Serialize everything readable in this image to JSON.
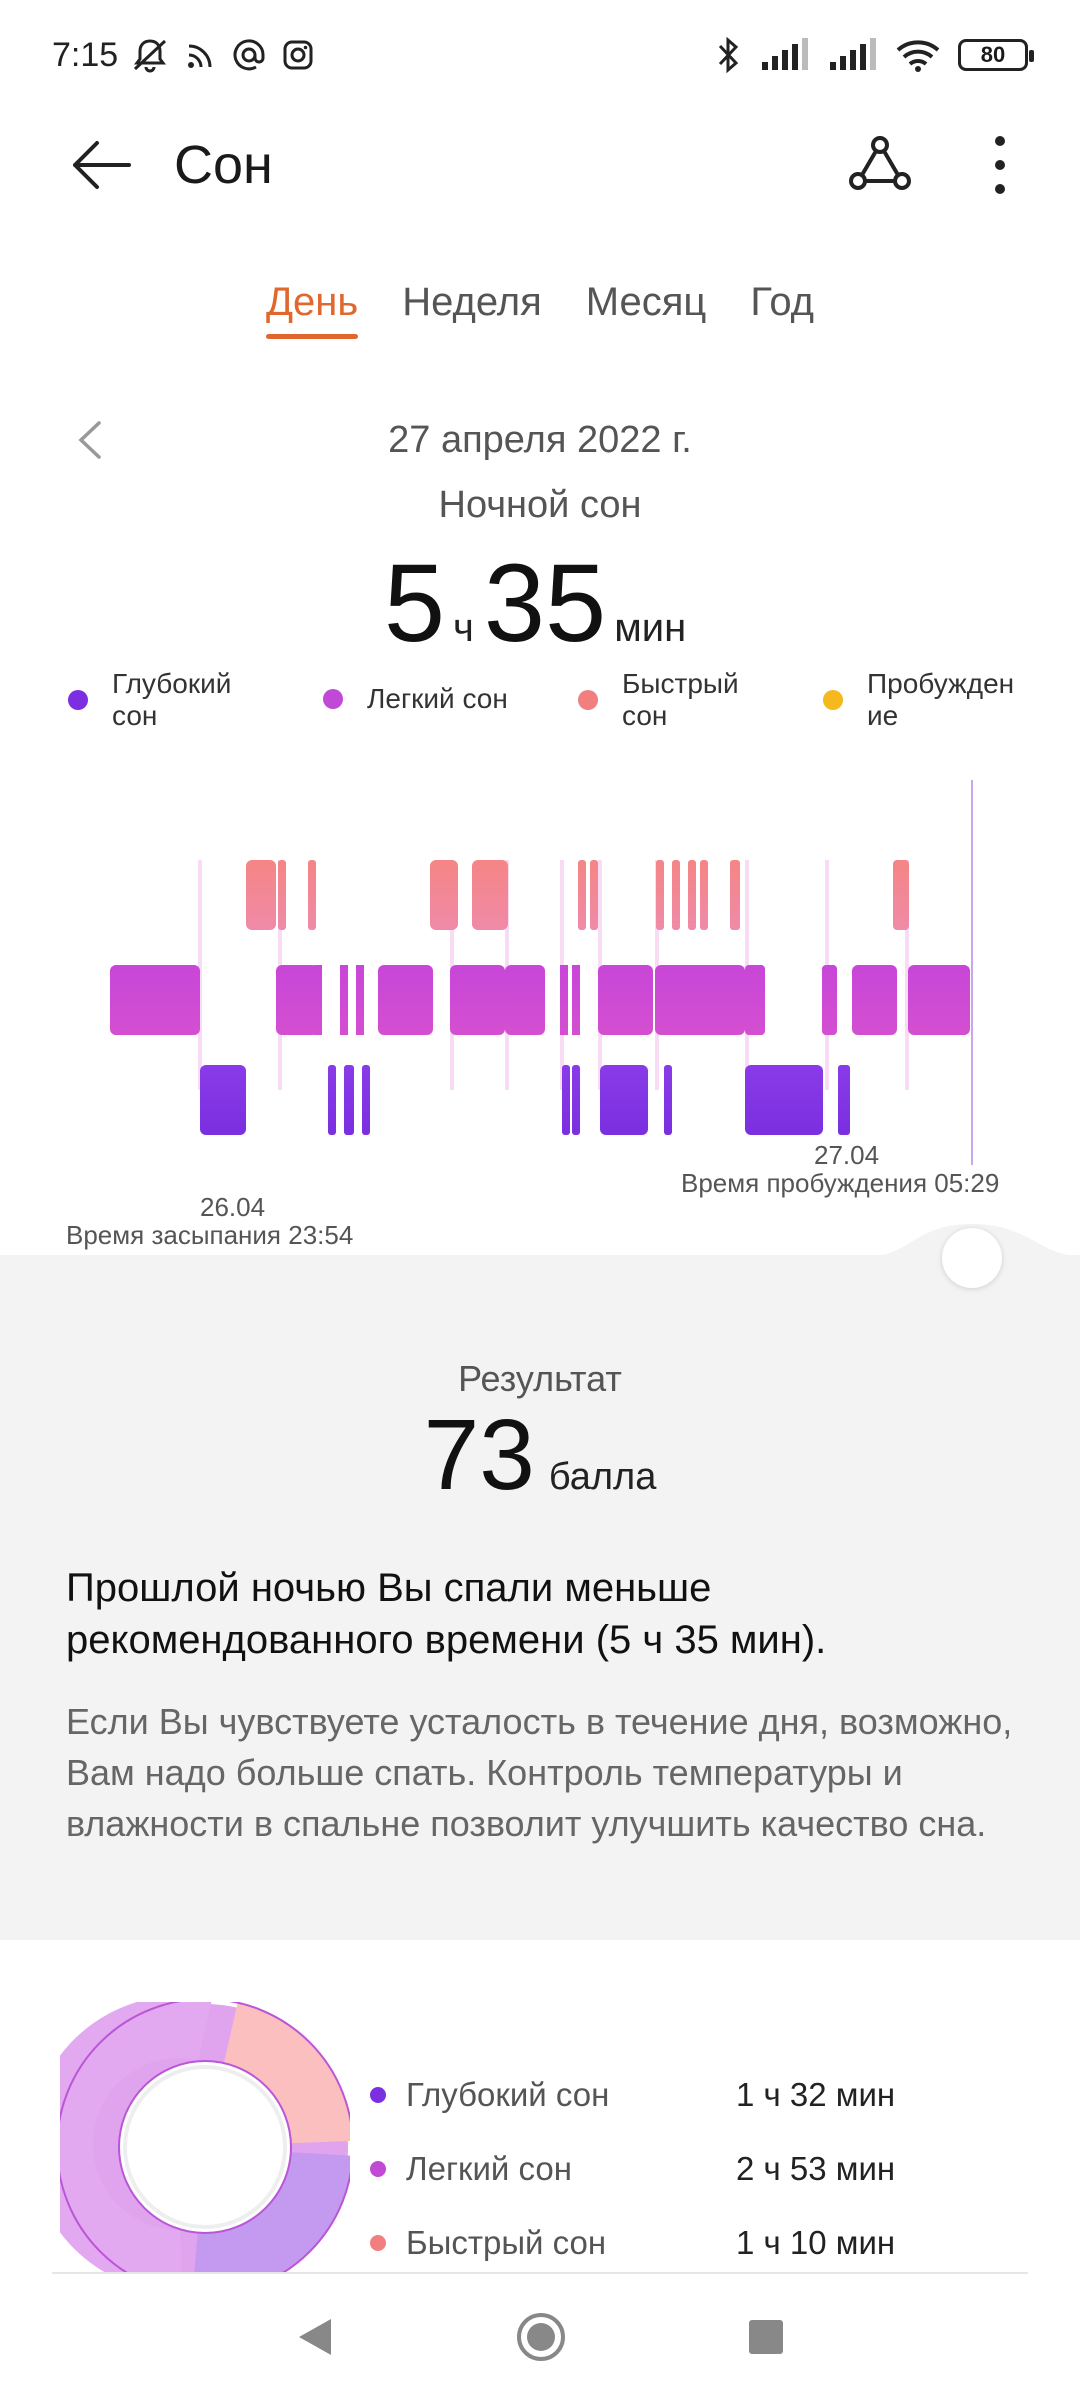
{
  "status_bar": {
    "time": "7:15",
    "battery": "80"
  },
  "app_bar": {
    "title": "Сон"
  },
  "tabs": [
    {
      "label": "День",
      "active": true
    },
    {
      "label": "Неделя",
      "active": false
    },
    {
      "label": "Месяц",
      "active": false
    },
    {
      "label": "Год",
      "active": false
    }
  ],
  "date": "27 апреля 2022 г.",
  "summary": {
    "label": "Ночной сон",
    "hours": "5",
    "hours_unit": "ч",
    "minutes": "35",
    "minutes_unit": "мин"
  },
  "legend": [
    {
      "label": "Глубокий сон",
      "color": "#7b2fe0"
    },
    {
      "label": "Легкий сон",
      "color": "#c04ad6"
    },
    {
      "label": "Быстрый сон",
      "color": "#f27f7f"
    },
    {
      "label": "Пробуждение",
      "color": "#f5b81d"
    }
  ],
  "chart": {
    "start_date": "26.04",
    "sleep_start": "Время засыпания 23:54",
    "end_date": "27.04",
    "wake_time": "Время пробуждения 05:29"
  },
  "result": {
    "label": "Результат",
    "value": "73",
    "unit": "балла"
  },
  "message": {
    "title": "Прошлой ночью Вы спали меньше рекомендованного времени (5 ч 35 мин).",
    "body": "Если Вы чувствуете усталость в течение дня, возможно, Вам надо больше спать. Контроль температуры и влажности в спальне позволит улучшить качество сна."
  },
  "stats": [
    {
      "name": "Глубокий сон",
      "value": "1 ч 32 мин",
      "color": "#7b2fe0"
    },
    {
      "name": "Легкий сон",
      "value": "2 ч 53 мин",
      "color": "#c04ad6"
    },
    {
      "name": "Быстрый сон",
      "value": "1 ч 10 мин",
      "color": "#f27f7f"
    }
  ]
}
